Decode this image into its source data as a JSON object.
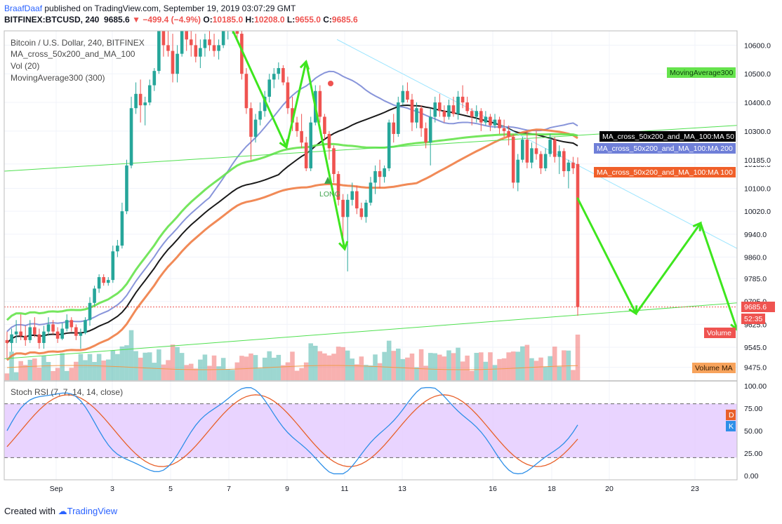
{
  "header": {
    "author": "BraafDaaf",
    "published_text": "published on TradingView.com, September 19, 2019 03:07:29 GMT",
    "symbol": "BITFINEX:BTCUSD, 240",
    "last": "9685.6",
    "change": "−499.4 (−4.9%)",
    "ohlc": {
      "o_label": "O:",
      "o": "10185.0",
      "h_label": "H:",
      "h": "10208.0",
      "l_label": "L:",
      "l": "9655.0",
      "c_label": "C:",
      "c": "9685.6"
    }
  },
  "indicators": {
    "title": "Bitcoin / U.S. Dollar, 240, BITFINEX",
    "ma_cross": "MA_cross_50x200_and_MA_100",
    "vol": "Vol (20)",
    "ma300": "MovingAverage300 (300)",
    "stoch": "Stoch RSI (7, 7, 14, 14, close)"
  },
  "annotations": {
    "long": "LONG"
  },
  "footer": {
    "created_with": "Created with",
    "brand": "TradingView"
  },
  "colors": {
    "up": "#26a69a",
    "down": "#ef5350",
    "ma50": "#000000",
    "ma200": "#7b8ad6",
    "ma100": "#f07d45",
    "ma300": "#66e34d",
    "arrow": "#3ee61e",
    "stoch_k": "#2e8fe8",
    "stoch_d": "#e8602a",
    "stoch_band": "#e4c9ff"
  },
  "chart_data": {
    "type": "candlestick",
    "title": "Bitcoin / U.S. Dollar, 240, BITFINEX",
    "price_axis": {
      "ticks": [
        10600.0,
        10500.0,
        10400.0,
        10300.0,
        10185.0,
        10100.0,
        10020.0,
        9940.0,
        9860.0,
        9785.0,
        9705.0,
        9625.0,
        9545.0,
        9475.0
      ],
      "tick_labels": [
        "10600.0",
        "10500.0",
        "10400.0",
        "10300.0",
        "10185.0",
        "10100.0",
        "10020.0",
        "9940.0",
        "9860.0",
        "9785.0",
        "9705.0",
        "9625.0",
        "9545.0",
        "9475.0"
      ],
      "range": [
        9430,
        10650
      ]
    },
    "time_axis": {
      "labels": [
        "Sep",
        "3",
        "5",
        "7",
        "9",
        "11",
        "13",
        "16",
        "18",
        "20",
        "23"
      ]
    },
    "candles": [
      {
        "o": 9570,
        "h": 9600,
        "l": 9505,
        "c": 9560
      },
      {
        "o": 9560,
        "h": 9610,
        "l": 9530,
        "c": 9590
      },
      {
        "o": 9590,
        "h": 9640,
        "l": 9560,
        "c": 9600
      },
      {
        "o": 9600,
        "h": 9660,
        "l": 9570,
        "c": 9585
      },
      {
        "o": 9585,
        "h": 9620,
        "l": 9550,
        "c": 9570
      },
      {
        "o": 9570,
        "h": 9640,
        "l": 9560,
        "c": 9615
      },
      {
        "o": 9615,
        "h": 9650,
        "l": 9580,
        "c": 9590
      },
      {
        "o": 9590,
        "h": 9610,
        "l": 9540,
        "c": 9560
      },
      {
        "o": 9560,
        "h": 9620,
        "l": 9540,
        "c": 9600
      },
      {
        "o": 9600,
        "h": 9650,
        "l": 9585,
        "c": 9625
      },
      {
        "o": 9625,
        "h": 9640,
        "l": 9590,
        "c": 9600
      },
      {
        "o": 9600,
        "h": 9615,
        "l": 9560,
        "c": 9575
      },
      {
        "o": 9575,
        "h": 9630,
        "l": 9570,
        "c": 9610
      },
      {
        "o": 9610,
        "h": 9660,
        "l": 9600,
        "c": 9640
      },
      {
        "o": 9640,
        "h": 9650,
        "l": 9600,
        "c": 9615
      },
      {
        "o": 9615,
        "h": 9625,
        "l": 9570,
        "c": 9585
      },
      {
        "o": 9585,
        "h": 9610,
        "l": 9540,
        "c": 9595
      },
      {
        "o": 9595,
        "h": 9650,
        "l": 9590,
        "c": 9640
      },
      {
        "o": 9640,
        "h": 9720,
        "l": 9620,
        "c": 9700
      },
      {
        "o": 9700,
        "h": 9760,
        "l": 9690,
        "c": 9750
      },
      {
        "o": 9750,
        "h": 9800,
        "l": 9735,
        "c": 9790
      },
      {
        "o": 9790,
        "h": 9800,
        "l": 9760,
        "c": 9770
      },
      {
        "o": 9770,
        "h": 9790,
        "l": 9760,
        "c": 9780
      },
      {
        "o": 9780,
        "h": 9900,
        "l": 9770,
        "c": 9880
      },
      {
        "o": 9880,
        "h": 9920,
        "l": 9860,
        "c": 9900
      },
      {
        "o": 9900,
        "h": 10050,
        "l": 9890,
        "c": 10020
      },
      {
        "o": 10020,
        "h": 10200,
        "l": 10010,
        "c": 10180
      },
      {
        "o": 10180,
        "h": 10420,
        "l": 10170,
        "c": 10380
      },
      {
        "o": 10380,
        "h": 10470,
        "l": 10360,
        "c": 10430
      },
      {
        "o": 10430,
        "h": 10480,
        "l": 10330,
        "c": 10390
      },
      {
        "o": 10390,
        "h": 10420,
        "l": 10320,
        "c": 10400
      },
      {
        "o": 10400,
        "h": 10480,
        "l": 10390,
        "c": 10460
      },
      {
        "o": 10460,
        "h": 10520,
        "l": 10440,
        "c": 10510
      },
      {
        "o": 10510,
        "h": 10700,
        "l": 10500,
        "c": 10650
      },
      {
        "o": 10650,
        "h": 10720,
        "l": 10560,
        "c": 10600
      },
      {
        "o": 10600,
        "h": 10680,
        "l": 10560,
        "c": 10580
      },
      {
        "o": 10580,
        "h": 10640,
        "l": 10470,
        "c": 10500
      },
      {
        "o": 10500,
        "h": 10600,
        "l": 10470,
        "c": 10570
      },
      {
        "o": 10570,
        "h": 10700,
        "l": 10560,
        "c": 10660
      },
      {
        "o": 10660,
        "h": 10700,
        "l": 10580,
        "c": 10620
      },
      {
        "o": 10620,
        "h": 10660,
        "l": 10560,
        "c": 10600
      },
      {
        "o": 10600,
        "h": 10640,
        "l": 10540,
        "c": 10560
      },
      {
        "o": 10560,
        "h": 10620,
        "l": 10520,
        "c": 10590
      },
      {
        "o": 10590,
        "h": 10640,
        "l": 10560,
        "c": 10620
      },
      {
        "o": 10620,
        "h": 10660,
        "l": 10580,
        "c": 10600
      },
      {
        "o": 10600,
        "h": 10640,
        "l": 10560,
        "c": 10580
      },
      {
        "o": 10580,
        "h": 10620,
        "l": 10550,
        "c": 10600
      },
      {
        "o": 10600,
        "h": 10680,
        "l": 10590,
        "c": 10650
      },
      {
        "o": 10650,
        "h": 10700,
        "l": 10620,
        "c": 10670
      },
      {
        "o": 10670,
        "h": 10720,
        "l": 10640,
        "c": 10690
      },
      {
        "o": 10690,
        "h": 10700,
        "l": 10620,
        "c": 10640
      },
      {
        "o": 10640,
        "h": 10660,
        "l": 10480,
        "c": 10500
      },
      {
        "o": 10500,
        "h": 10520,
        "l": 10360,
        "c": 10380
      },
      {
        "o": 10380,
        "h": 10400,
        "l": 10200,
        "c": 10280
      },
      {
        "o": 10280,
        "h": 10360,
        "l": 10260,
        "c": 10340
      },
      {
        "o": 10340,
        "h": 10400,
        "l": 10320,
        "c": 10370
      },
      {
        "o": 10370,
        "h": 10440,
        "l": 10350,
        "c": 10420
      },
      {
        "o": 10420,
        "h": 10500,
        "l": 10400,
        "c": 10480
      },
      {
        "o": 10480,
        "h": 10520,
        "l": 10450,
        "c": 10500
      },
      {
        "o": 10500,
        "h": 10540,
        "l": 10480,
        "c": 10520
      },
      {
        "o": 10520,
        "h": 10530,
        "l": 10460,
        "c": 10470
      },
      {
        "o": 10470,
        "h": 10490,
        "l": 10360,
        "c": 10380
      },
      {
        "o": 10380,
        "h": 10420,
        "l": 10300,
        "c": 10330
      },
      {
        "o": 10330,
        "h": 10350,
        "l": 10280,
        "c": 10300
      },
      {
        "o": 10300,
        "h": 10360,
        "l": 10240,
        "c": 10260
      },
      {
        "o": 10260,
        "h": 10280,
        "l": 10160,
        "c": 10170
      },
      {
        "o": 10170,
        "h": 10350,
        "l": 10160,
        "c": 10330
      },
      {
        "o": 10330,
        "h": 10460,
        "l": 10320,
        "c": 10440
      },
      {
        "o": 10440,
        "h": 10460,
        "l": 10330,
        "c": 10350
      },
      {
        "o": 10350,
        "h": 10360,
        "l": 10270,
        "c": 10290
      },
      {
        "o": 10290,
        "h": 10300,
        "l": 10200,
        "c": 10240
      },
      {
        "o": 10240,
        "h": 10250,
        "l": 10120,
        "c": 10150
      },
      {
        "o": 10150,
        "h": 10160,
        "l": 10040,
        "c": 10060
      },
      {
        "o": 10060,
        "h": 10080,
        "l": 9900,
        "c": 10000
      },
      {
        "o": 10000,
        "h": 10080,
        "l": 9810,
        "c": 10060
      },
      {
        "o": 10060,
        "h": 10120,
        "l": 10040,
        "c": 10090
      },
      {
        "o": 10090,
        "h": 10110,
        "l": 10010,
        "c": 10030
      },
      {
        "o": 10030,
        "h": 10050,
        "l": 9990,
        "c": 10000
      },
      {
        "o": 10000,
        "h": 10060,
        "l": 9980,
        "c": 10050
      },
      {
        "o": 10050,
        "h": 10140,
        "l": 10040,
        "c": 10120
      },
      {
        "o": 10120,
        "h": 10180,
        "l": 10080,
        "c": 10160
      },
      {
        "o": 10160,
        "h": 10200,
        "l": 10100,
        "c": 10140
      },
      {
        "o": 10140,
        "h": 10180,
        "l": 10120,
        "c": 10170
      },
      {
        "o": 10170,
        "h": 10340,
        "l": 10160,
        "c": 10330
      },
      {
        "o": 10330,
        "h": 10360,
        "l": 10260,
        "c": 10290
      },
      {
        "o": 10290,
        "h": 10420,
        "l": 10280,
        "c": 10400
      },
      {
        "o": 10400,
        "h": 10460,
        "l": 10390,
        "c": 10440
      },
      {
        "o": 10440,
        "h": 10470,
        "l": 10400,
        "c": 10410
      },
      {
        "o": 10410,
        "h": 10430,
        "l": 10300,
        "c": 10330
      },
      {
        "o": 10330,
        "h": 10400,
        "l": 10310,
        "c": 10380
      },
      {
        "o": 10380,
        "h": 10390,
        "l": 10280,
        "c": 10310
      },
      {
        "o": 10310,
        "h": 10330,
        "l": 10240,
        "c": 10260
      },
      {
        "o": 10260,
        "h": 10380,
        "l": 10180,
        "c": 10350
      },
      {
        "o": 10350,
        "h": 10420,
        "l": 10330,
        "c": 10400
      },
      {
        "o": 10400,
        "h": 10430,
        "l": 10350,
        "c": 10370
      },
      {
        "o": 10370,
        "h": 10390,
        "l": 10330,
        "c": 10350
      },
      {
        "o": 10350,
        "h": 10410,
        "l": 10340,
        "c": 10390
      },
      {
        "o": 10390,
        "h": 10420,
        "l": 10350,
        "c": 10360
      },
      {
        "o": 10360,
        "h": 10440,
        "l": 10340,
        "c": 10420
      },
      {
        "o": 10420,
        "h": 10460,
        "l": 10380,
        "c": 10400
      },
      {
        "o": 10400,
        "h": 10420,
        "l": 10360,
        "c": 10370
      },
      {
        "o": 10370,
        "h": 10380,
        "l": 10320,
        "c": 10350
      },
      {
        "o": 10350,
        "h": 10390,
        "l": 10330,
        "c": 10370
      },
      {
        "o": 10370,
        "h": 10380,
        "l": 10300,
        "c": 10330
      },
      {
        "o": 10330,
        "h": 10370,
        "l": 10320,
        "c": 10350
      },
      {
        "o": 10350,
        "h": 10360,
        "l": 10300,
        "c": 10320
      },
      {
        "o": 10320,
        "h": 10360,
        "l": 10310,
        "c": 10340
      },
      {
        "o": 10340,
        "h": 10350,
        "l": 10290,
        "c": 10310
      },
      {
        "o": 10310,
        "h": 10340,
        "l": 10280,
        "c": 10300
      },
      {
        "o": 10300,
        "h": 10320,
        "l": 10250,
        "c": 10280
      },
      {
        "o": 10280,
        "h": 10290,
        "l": 10100,
        "c": 10120
      },
      {
        "o": 10120,
        "h": 10220,
        "l": 10090,
        "c": 10200
      },
      {
        "o": 10200,
        "h": 10280,
        "l": 10190,
        "c": 10270
      },
      {
        "o": 10270,
        "h": 10300,
        "l": 10170,
        "c": 10190
      },
      {
        "o": 10190,
        "h": 10260,
        "l": 10170,
        "c": 10240
      },
      {
        "o": 10240,
        "h": 10300,
        "l": 10200,
        "c": 10220
      },
      {
        "o": 10220,
        "h": 10230,
        "l": 10150,
        "c": 10170
      },
      {
        "o": 10170,
        "h": 10240,
        "l": 10160,
        "c": 10220
      },
      {
        "o": 10220,
        "h": 10290,
        "l": 10210,
        "c": 10270
      },
      {
        "o": 10270,
        "h": 10280,
        "l": 10190,
        "c": 10210
      },
      {
        "o": 10210,
        "h": 10250,
        "l": 10150,
        "c": 10230
      },
      {
        "o": 10230,
        "h": 10240,
        "l": 10140,
        "c": 10160
      },
      {
        "o": 10160,
        "h": 10200,
        "l": 10100,
        "c": 10190
      },
      {
        "o": 10190,
        "h": 10210,
        "l": 10150,
        "c": 10170
      },
      {
        "o": 10185,
        "h": 10208,
        "l": 9655,
        "c": 9685.6
      }
    ],
    "volume_labels": [
      "Volume",
      "Volume MA"
    ],
    "ma_labels": [
      "MA_cross_50x200_and_MA_100:MA 50",
      "MA_cross_50x200_and_MA_100:MA 200",
      "MA_cross_50x200_and_MA_100:MA 100",
      "MovingAverage300"
    ],
    "last_price_label": "9685.6",
    "countdown": "52:35",
    "stoch": {
      "axis_labels": [
        "100.00",
        "75.00",
        "50.00",
        "25.00",
        "0.00"
      ],
      "upper_band": 80,
      "lower_band": 20,
      "legend": [
        "D",
        "K"
      ]
    }
  }
}
